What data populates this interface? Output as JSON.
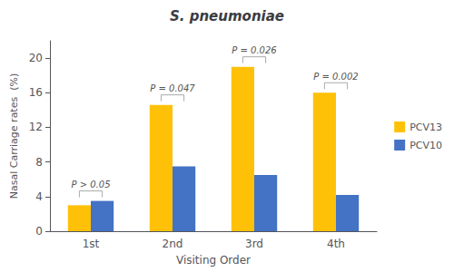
{
  "chart_data": {
    "type": "bar",
    "title": "S. pneumoniae",
    "xlabel": "Visiting Order",
    "ylabel": "Nasal Carriage rates  (%)",
    "categories": [
      "1st",
      "2nd",
      "3rd",
      "4th"
    ],
    "series": [
      {
        "name": "PCV13",
        "color": "#FFC107",
        "values": [
          3.0,
          14.6,
          19.0,
          16.0
        ]
      },
      {
        "name": "PCV10",
        "color": "#4472C4",
        "values": [
          3.5,
          7.5,
          6.5,
          4.2
        ]
      }
    ],
    "annotations": [
      "P > 0.05",
      "P = 0.047",
      "P = 0.026",
      "P = 0.002"
    ],
    "ylim": [
      0,
      22
    ],
    "yticks": [
      0,
      4,
      8,
      12,
      16,
      20
    ],
    "grid": false,
    "legend": "right"
  }
}
